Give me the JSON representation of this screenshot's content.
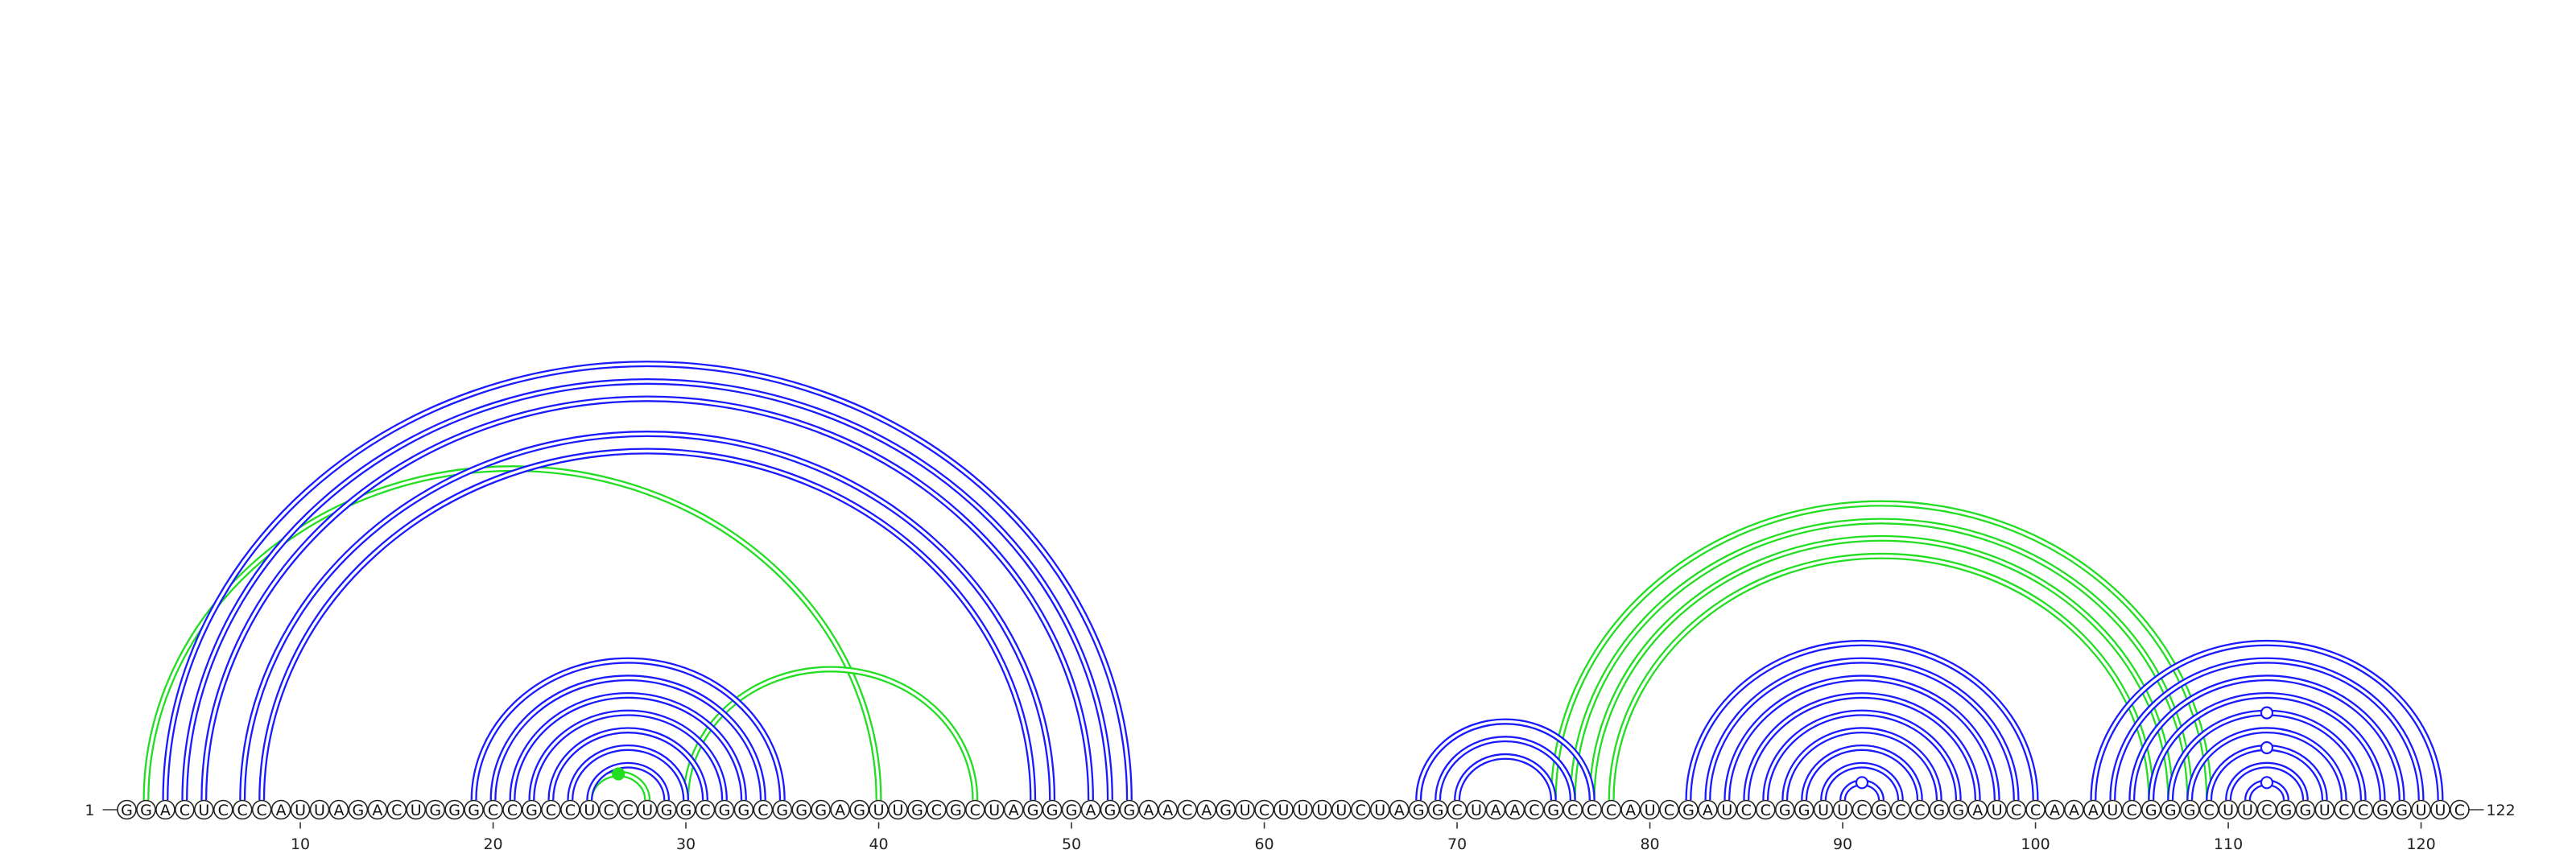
{
  "chart_data": {
    "type": "arc-diagram",
    "sequence": "GGACUCCCAUUAGACUGGGCCGCCUCCUGGCGGCGGGAGUUGCGCUAGGGAGGAACAGUCUUUUCUAGGCUAACGCCCAUCGAUCCGGUUCGCCGGAUCCAAAUCGGGCUUCGGUCCGGUUC",
    "start_label": "1",
    "end_label": "122",
    "tick_labels": [
      "10",
      "20",
      "30",
      "40",
      "50",
      "60",
      "70",
      "80",
      "90",
      "100",
      "110",
      "120"
    ],
    "colors": {
      "stem": "#1a1aff",
      "pseudoknot": "#22dd22",
      "nucleotide_stroke": "#222222"
    },
    "stem_pairs": [
      [
        3,
        53
      ],
      [
        4,
        52
      ],
      [
        5,
        51
      ],
      [
        7,
        49
      ],
      [
        8,
        48
      ],
      [
        19,
        35
      ],
      [
        20,
        34
      ],
      [
        21,
        33
      ],
      [
        22,
        32
      ],
      [
        23,
        31
      ],
      [
        24,
        30
      ],
      [
        25,
        29
      ],
      [
        68,
        77
      ],
      [
        69,
        76
      ],
      [
        70,
        75
      ],
      [
        82,
        100
      ],
      [
        83,
        99
      ],
      [
        84,
        98
      ],
      [
        85,
        97
      ],
      [
        86,
        96
      ],
      [
        87,
        95
      ],
      [
        88,
        94
      ],
      [
        89,
        93
      ],
      [
        90,
        92
      ],
      [
        103,
        121
      ],
      [
        104,
        120
      ],
      [
        105,
        119
      ],
      [
        106,
        118
      ],
      [
        107,
        117
      ],
      [
        108,
        116
      ],
      [
        109,
        115
      ],
      [
        110,
        114
      ],
      [
        111,
        113
      ]
    ],
    "pseudoknot_pairs": [
      [
        2,
        40
      ],
      [
        30,
        45
      ],
      [
        25,
        28
      ],
      [
        75,
        109
      ],
      [
        76,
        108
      ],
      [
        77,
        107
      ],
      [
        78,
        106
      ]
    ],
    "arc_markers": [
      {
        "pair": [
          25,
          28
        ],
        "style": "filled",
        "color": "#22dd22"
      },
      {
        "pair": [
          90,
          92
        ],
        "style": "open",
        "color": "#1a1aff"
      },
      {
        "pair": [
          111,
          113
        ],
        "style": "open",
        "color": "#1a1aff"
      },
      {
        "pair": [
          109,
          115
        ],
        "style": "open",
        "color": "#1a1aff"
      },
      {
        "pair": [
          107,
          117
        ],
        "style": "open",
        "color": "#1a1aff"
      }
    ]
  }
}
